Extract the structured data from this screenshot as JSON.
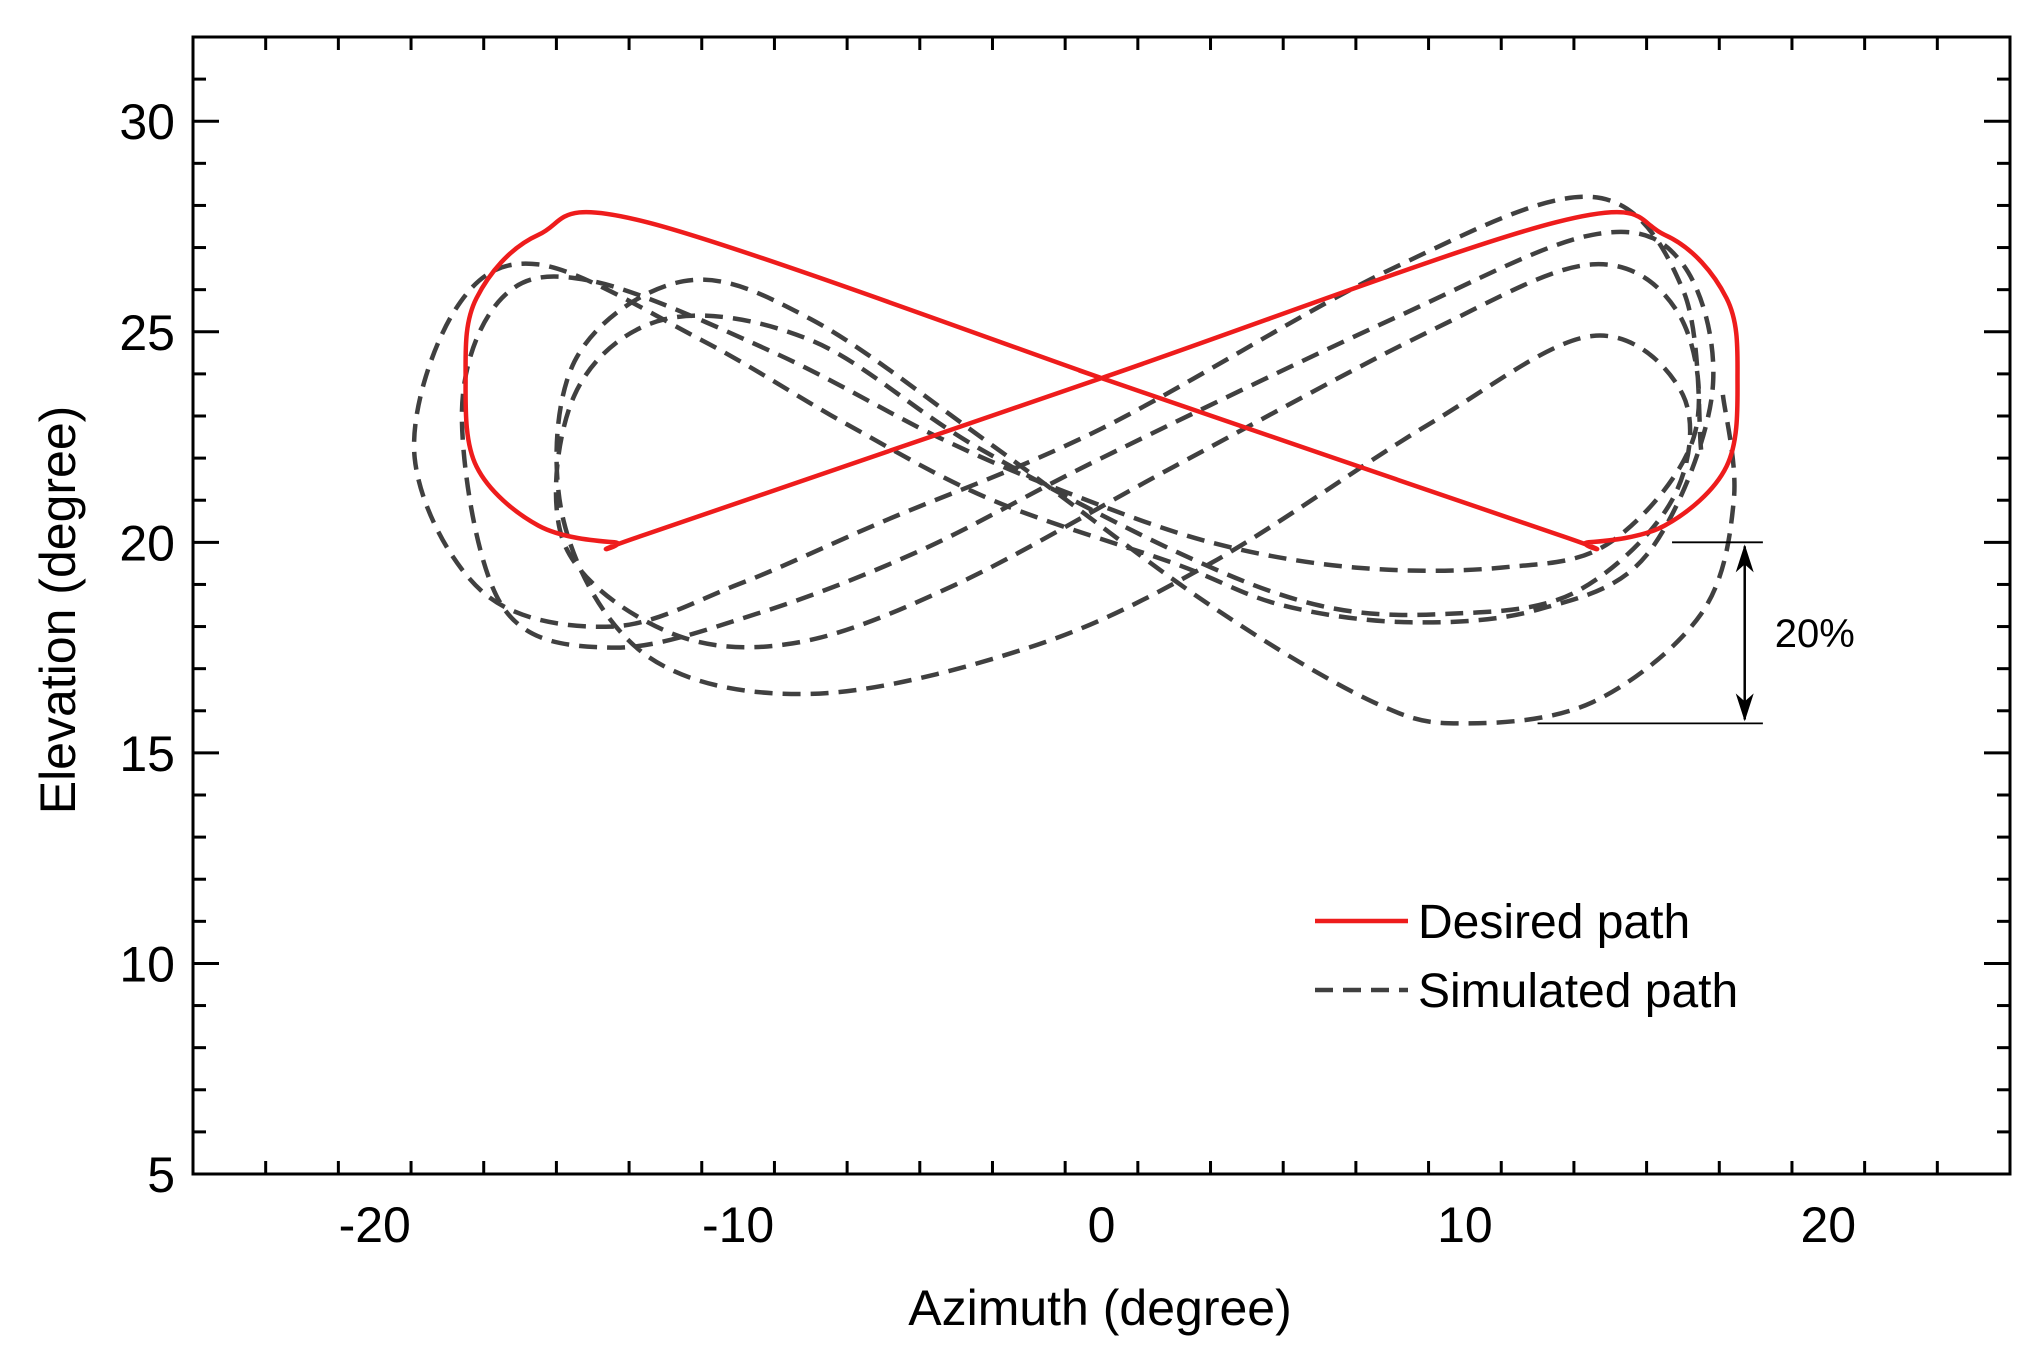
{
  "chart_data": {
    "type": "line",
    "title": "",
    "xlabel": "Azimuth (degree)",
    "ylabel": "Elevation (degree)",
    "xlim": [
      -25,
      25
    ],
    "ylim": [
      5,
      32
    ],
    "x_ticks": [
      -20,
      -10,
      0,
      10,
      20
    ],
    "x_tick_labels": [
      "-20",
      "-10",
      "0",
      "10",
      "20"
    ],
    "y_ticks": [
      5,
      10,
      15,
      20,
      25,
      30
    ],
    "y_tick_labels": [
      "5",
      "10",
      "15",
      "20",
      "25",
      "30"
    ],
    "grid": false,
    "legend_position": "bottom-right",
    "series": [
      {
        "name": "Desired path",
        "style": "solid",
        "color": "#ee1c1c",
        "points": [
          [
            0,
            23.9
          ],
          [
            -12.5,
            27.6
          ],
          [
            -15.5,
            27.3
          ],
          [
            -17.2,
            25.8
          ],
          [
            -17.5,
            23.9
          ],
          [
            -17.2,
            21.8
          ],
          [
            -15.5,
            20.4
          ],
          [
            -13.4,
            20.0
          ],
          [
            -12.5,
            20.2
          ],
          [
            0,
            23.9
          ],
          [
            12.5,
            27.6
          ],
          [
            15.5,
            27.3
          ],
          [
            17.2,
            25.8
          ],
          [
            17.5,
            23.9
          ],
          [
            17.2,
            21.8
          ],
          [
            15.5,
            20.4
          ],
          [
            13.4,
            20.0
          ],
          [
            12.5,
            20.2
          ],
          [
            0,
            23.9
          ]
        ]
      },
      {
        "name": "Simulated path",
        "style": "dashed",
        "color": "#404040",
        "points": [
          [
            16.5,
            22.2
          ],
          [
            16.0,
            26.0
          ],
          [
            13.5,
            28.2
          ],
          [
            8,
            26.5
          ],
          [
            0,
            22.7
          ],
          [
            -6,
            20.5
          ],
          [
            -10,
            19.0
          ],
          [
            -13.5,
            18.0
          ],
          [
            -17,
            18.8
          ],
          [
            -18.9,
            22.0
          ],
          [
            -17.8,
            25.5
          ],
          [
            -15.5,
            26.6
          ],
          [
            -11,
            24.8
          ],
          [
            -7,
            22.8
          ],
          [
            -3,
            21.0
          ],
          [
            2,
            19.5
          ],
          [
            5,
            18.5
          ],
          [
            8.5,
            18.1
          ],
          [
            12,
            18.4
          ],
          [
            15.0,
            19.7
          ],
          [
            16.8,
            23.5
          ],
          [
            16.0,
            26.6
          ],
          [
            13.5,
            27.3
          ],
          [
            8,
            25.3
          ],
          [
            0,
            22.0
          ],
          [
            -5,
            19.8
          ],
          [
            -9.5,
            18.3
          ],
          [
            -13.5,
            17.5
          ],
          [
            -16.5,
            18.5
          ],
          [
            -17.6,
            23.0
          ],
          [
            -16.5,
            25.8
          ],
          [
            -14,
            26.2
          ],
          [
            -9,
            24.5
          ],
          [
            -4.5,
            22.5
          ],
          [
            -1,
            21.2
          ],
          [
            3,
            20.0
          ],
          [
            7,
            19.4
          ],
          [
            11,
            19.4
          ],
          [
            14,
            20.0
          ],
          [
            16.3,
            22.5
          ],
          [
            15.9,
            25.4
          ],
          [
            13.5,
            26.6
          ],
          [
            9,
            25.0
          ],
          [
            2,
            21.8
          ],
          [
            -4,
            19.0
          ],
          [
            -8.5,
            17.6
          ],
          [
            -12,
            17.9
          ],
          [
            -14.8,
            20.0
          ],
          [
            -14.5,
            23.5
          ],
          [
            -12,
            25.3
          ],
          [
            -8,
            24.8
          ],
          [
            -3.5,
            22.3
          ],
          [
            2,
            19.8
          ],
          [
            6,
            18.5
          ],
          [
            9.5,
            18.3
          ],
          [
            13,
            18.8
          ],
          [
            15.7,
            21.0
          ],
          [
            16.0,
            23.5
          ],
          [
            13.5,
            24.9
          ],
          [
            9,
            22.8
          ],
          [
            3,
            19.5
          ],
          [
            -2,
            17.5
          ],
          [
            -8,
            16.4
          ],
          [
            -12.5,
            17.3
          ],
          [
            -14.8,
            20.5
          ],
          [
            -14.5,
            24.3
          ],
          [
            -11.5,
            26.2
          ],
          [
            -8,
            25.3
          ],
          [
            -3,
            22.3
          ],
          [
            3,
            18.5
          ],
          [
            7.5,
            16.2
          ],
          [
            10,
            15.7
          ],
          [
            13.5,
            16.2
          ],
          [
            16.5,
            18.3
          ],
          [
            17.4,
            21.0
          ],
          [
            17.1,
            23.5
          ]
        ]
      }
    ],
    "annotations": [
      {
        "text": "20%",
        "from_y": 20,
        "to_y": 15.7,
        "x": 17.7
      }
    ]
  }
}
